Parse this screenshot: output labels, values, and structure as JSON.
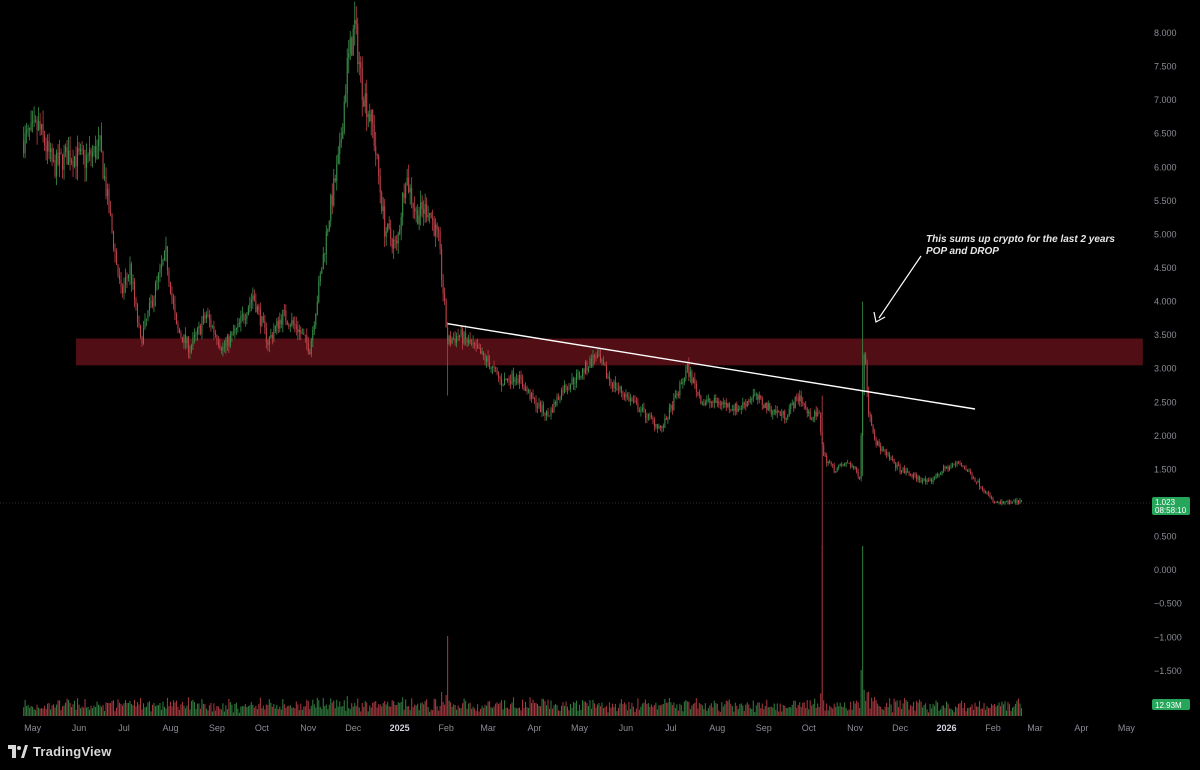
{
  "app": {
    "brand": "TradingView",
    "symbol_text": "",
    "current_price_label": "1.023",
    "countdown_label": "08:58:10",
    "volume_label": "12.93M"
  },
  "colors": {
    "background": "#000000",
    "up": "#3a8f4a",
    "down": "#c0424a",
    "zone_fill": "#5a0f16",
    "trendline": "#ffffff",
    "price_badge": "#26a65b",
    "volume_badge": "#26a65b"
  },
  "annotation": {
    "line1": "This sums up crypto for the last 2 years",
    "line2": "POP and DROP"
  },
  "chart_data": {
    "type": "candlestick",
    "title": "",
    "xlabel": "",
    "ylabel": "",
    "ylim": [
      -1.9,
      8.6
    ],
    "y_ticks": [
      "8.000",
      "7.500",
      "7.000",
      "6.500",
      "6.000",
      "5.500",
      "5.000",
      "4.500",
      "4.000",
      "3.500",
      "3.000",
      "2.500",
      "2.000",
      "1.500",
      "1.000",
      "0.500",
      "0.000",
      "−0.500",
      "−1.000",
      "−1.500"
    ],
    "y_tick_values": [
      8,
      7.5,
      7,
      6.5,
      6,
      5.5,
      5,
      4.5,
      4,
      3.5,
      3,
      2.5,
      2,
      1.5,
      1,
      0.5,
      0,
      -0.5,
      -1,
      -1.5
    ],
    "x_ticks": [
      {
        "label": "May",
        "date": "2024-05-01",
        "bold": false
      },
      {
        "label": "Jun",
        "date": "2024-06-01",
        "bold": false
      },
      {
        "label": "Jul",
        "date": "2024-07-01",
        "bold": false
      },
      {
        "label": "Aug",
        "date": "2024-08-01",
        "bold": false
      },
      {
        "label": "Sep",
        "date": "2024-09-01",
        "bold": false
      },
      {
        "label": "Oct",
        "date": "2024-10-01",
        "bold": false
      },
      {
        "label": "Nov",
        "date": "2024-11-01",
        "bold": false
      },
      {
        "label": "Dec",
        "date": "2024-12-01",
        "bold": false
      },
      {
        "label": "2025",
        "date": "2025-01-01",
        "bold": true
      },
      {
        "label": "Feb",
        "date": "2025-02-01",
        "bold": false
      },
      {
        "label": "Mar",
        "date": "2025-03-01",
        "bold": false
      },
      {
        "label": "Apr",
        "date": "2025-04-01",
        "bold": false
      },
      {
        "label": "May",
        "date": "2025-05-01",
        "bold": false
      },
      {
        "label": "Jun",
        "date": "2025-06-01",
        "bold": false
      },
      {
        "label": "Jul",
        "date": "2025-07-01",
        "bold": false
      },
      {
        "label": "Aug",
        "date": "2025-08-01",
        "bold": false
      },
      {
        "label": "Sep",
        "date": "2025-09-01",
        "bold": false
      },
      {
        "label": "Oct",
        "date": "2025-10-01",
        "bold": false
      },
      {
        "label": "Nov",
        "date": "2025-11-01",
        "bold": false
      },
      {
        "label": "Dec",
        "date": "2025-12-01",
        "bold": false
      },
      {
        "label": "2026",
        "date": "2026-01-01",
        "bold": true
      },
      {
        "label": "Feb",
        "date": "2026-02-01",
        "bold": false
      },
      {
        "label": "Mar",
        "date": "2026-03-01",
        "bold": false
      },
      {
        "label": "Apr",
        "date": "2026-04-01",
        "bold": false
      },
      {
        "label": "May",
        "date": "2026-05-01",
        "bold": false
      }
    ],
    "price_path": [
      [
        "2024-04-25",
        6.4
      ],
      [
        "2024-05-05",
        6.6
      ],
      [
        "2024-05-15",
        6.0
      ],
      [
        "2024-05-25",
        6.2
      ],
      [
        "2024-06-05",
        6.1
      ],
      [
        "2024-06-15",
        6.3
      ],
      [
        "2024-06-22",
        5.2
      ],
      [
        "2024-06-29",
        4.1
      ],
      [
        "2024-07-05",
        4.5
      ],
      [
        "2024-07-12",
        3.4
      ],
      [
        "2024-07-22",
        4.2
      ],
      [
        "2024-07-29",
        4.7
      ],
      [
        "2024-08-05",
        3.6
      ],
      [
        "2024-08-14",
        3.3
      ],
      [
        "2024-08-25",
        3.8
      ],
      [
        "2024-09-05",
        3.3
      ],
      [
        "2024-09-15",
        3.6
      ],
      [
        "2024-09-25",
        4.1
      ],
      [
        "2024-10-05",
        3.4
      ],
      [
        "2024-10-15",
        3.8
      ],
      [
        "2024-10-25",
        3.6
      ],
      [
        "2024-11-02",
        3.3
      ],
      [
        "2024-11-08",
        4.2
      ],
      [
        "2024-11-15",
        5.3
      ],
      [
        "2024-11-22",
        6.2
      ],
      [
        "2024-11-27",
        7.5
      ],
      [
        "2024-12-02",
        8.1
      ],
      [
        "2024-12-07",
        7.2
      ],
      [
        "2024-12-14",
        6.6
      ],
      [
        "2024-12-22",
        5.1
      ],
      [
        "2024-12-30",
        4.8
      ],
      [
        "2025-01-05",
        5.9
      ],
      [
        "2025-01-12",
        5.3
      ],
      [
        "2025-01-20",
        5.4
      ],
      [
        "2025-01-27",
        4.9
      ],
      [
        "2025-02-02",
        3.4
      ],
      [
        "2025-02-10",
        3.5
      ],
      [
        "2025-02-20",
        3.3
      ],
      [
        "2025-03-01",
        3.1
      ],
      [
        "2025-03-10",
        2.8
      ],
      [
        "2025-03-20",
        2.9
      ],
      [
        "2025-04-01",
        2.5
      ],
      [
        "2025-04-10",
        2.3
      ],
      [
        "2025-04-20",
        2.7
      ],
      [
        "2025-05-01",
        2.9
      ],
      [
        "2025-05-12",
        3.2
      ],
      [
        "2025-05-22",
        2.8
      ],
      [
        "2025-06-01",
        2.6
      ],
      [
        "2025-06-15",
        2.3
      ],
      [
        "2025-06-25",
        2.1
      ],
      [
        "2025-07-05",
        2.6
      ],
      [
        "2025-07-12",
        3.0
      ],
      [
        "2025-07-22",
        2.5
      ],
      [
        "2025-08-02",
        2.5
      ],
      [
        "2025-08-15",
        2.4
      ],
      [
        "2025-08-25",
        2.6
      ],
      [
        "2025-09-05",
        2.4
      ],
      [
        "2025-09-15",
        2.3
      ],
      [
        "2025-09-25",
        2.6
      ],
      [
        "2025-10-01",
        2.3
      ],
      [
        "2025-10-08",
        2.3
      ],
      [
        "2025-10-11",
        1.7
      ],
      [
        "2025-10-18",
        1.5
      ],
      [
        "2025-10-28",
        1.6
      ],
      [
        "2025-11-04",
        1.4
      ],
      [
        "2025-11-07",
        3.3
      ],
      [
        "2025-11-10",
        2.4
      ],
      [
        "2025-11-15",
        1.9
      ],
      [
        "2025-11-22",
        1.7
      ],
      [
        "2025-12-01",
        1.5
      ],
      [
        "2025-12-10",
        1.4
      ],
      [
        "2025-12-20",
        1.3
      ],
      [
        "2025-12-30",
        1.5
      ],
      [
        "2026-01-10",
        1.6
      ],
      [
        "2026-01-18",
        1.4
      ],
      [
        "2026-01-26",
        1.2
      ],
      [
        "2026-02-02",
        1.0
      ],
      [
        "2026-02-10",
        1.0
      ],
      [
        "2026-02-20",
        1.023
      ]
    ],
    "spikes": [
      {
        "date": "2025-02-02",
        "high": 3.7,
        "low": 2.6
      },
      {
        "date": "2025-10-10",
        "high": 2.6,
        "low": 0.35
      },
      {
        "date": "2025-11-06",
        "high": 4.0,
        "low": 1.4
      }
    ],
    "resistance_zone": {
      "start": "2024-06-01",
      "end": "2026-05-12",
      "low": 3.05,
      "high": 3.45
    },
    "trendline": {
      "start": [
        "2025-02-02",
        3.67
      ],
      "end": [
        "2026-01-20",
        2.4
      ]
    },
    "current_price": 1.023,
    "volume": {
      "max_label": "12.93M"
    }
  }
}
